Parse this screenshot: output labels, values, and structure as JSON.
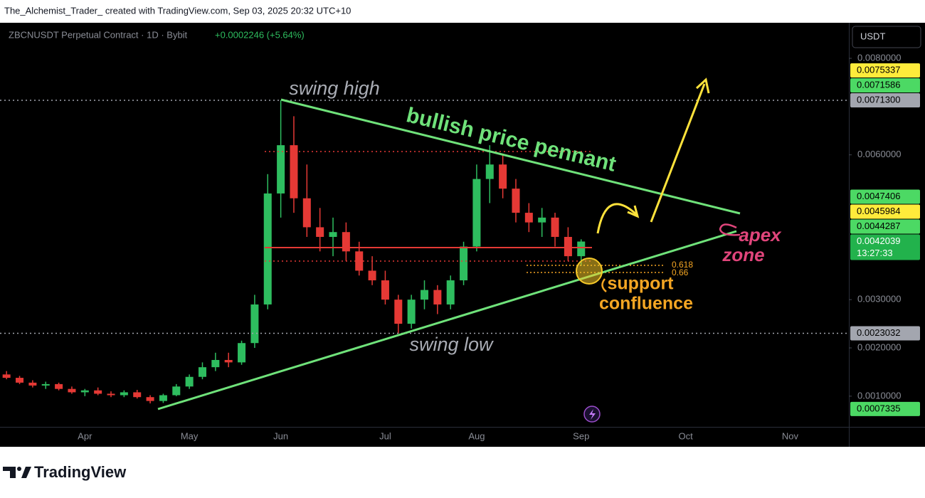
{
  "header": {
    "text": "The_Alchemist_Trader_ created with TradingView.com, Sep 03, 2025 20:32 UTC+10"
  },
  "footer": {
    "brand": "TradingView"
  },
  "chart_data": {
    "type": "candlestick",
    "title": "ZBCNUSDT Perpetual Contract · 1D · Bybit",
    "change": "+0.0002246 (+5.64%)",
    "currency": "USDT",
    "countdown": "13:27:33",
    "categories": [
      null,
      null,
      null,
      null,
      null,
      null,
      "Apr",
      null,
      null,
      null,
      null,
      null,
      null,
      null,
      "May",
      null,
      null,
      null,
      null,
      null,
      null,
      "Jun",
      null,
      null,
      null,
      null,
      null,
      null,
      null,
      "Jul",
      null,
      null,
      null,
      null,
      null,
      null,
      "Aug",
      null,
      null,
      null,
      null,
      null,
      null,
      null,
      "Sep",
      null,
      null,
      null,
      null,
      null,
      null,
      null,
      "Oct",
      null,
      null,
      null,
      null,
      null,
      null,
      null,
      "Nov",
      null,
      null,
      null,
      null
    ],
    "series": [
      {
        "open": [
          0.00145,
          0.00138,
          0.00128,
          0.00122,
          0.00125,
          0.00115,
          0.00108,
          0.00112,
          0.00105,
          0.00102,
          0.00108,
          0.00098,
          0.0009,
          0.00102,
          0.0012,
          0.0014,
          0.0016,
          0.00175,
          0.0017,
          0.0021,
          0.0029,
          0.0052,
          0.0062,
          0.0051,
          0.0045,
          0.0043,
          0.0044,
          0.004,
          0.0036,
          0.0034,
          0.003,
          0.0025,
          0.003,
          0.0032,
          0.0029,
          0.0034,
          0.0041,
          0.0055,
          0.0058,
          0.0053,
          0.0048,
          0.0046,
          0.0047,
          0.0043,
          0.0039,
          null,
          null,
          null,
          null,
          null,
          null,
          null,
          null,
          null,
          null,
          null,
          null,
          null,
          null,
          null,
          null,
          null,
          null,
          null,
          null
        ],
        "high": [
          0.00152,
          0.00142,
          0.00133,
          0.0013,
          0.00128,
          0.0012,
          0.00115,
          0.00118,
          0.0011,
          0.00112,
          0.00113,
          0.00102,
          0.00105,
          0.00125,
          0.00145,
          0.0017,
          0.0019,
          0.0019,
          0.00215,
          0.0031,
          0.0056,
          0.00713,
          0.0068,
          0.0058,
          0.0049,
          0.0047,
          0.0046,
          0.0042,
          0.0039,
          0.0036,
          0.0031,
          0.0031,
          0.0034,
          0.0033,
          0.0035,
          0.0042,
          0.0058,
          0.0062,
          0.006,
          0.0055,
          0.005,
          0.0049,
          0.0048,
          0.0045,
          0.00425,
          null,
          null,
          null,
          null,
          null,
          null,
          null,
          null,
          null,
          null,
          null,
          null,
          null,
          null,
          null,
          null,
          null,
          null,
          null,
          null
        ],
        "low": [
          0.00135,
          0.00125,
          0.00118,
          0.00115,
          0.00112,
          0.00105,
          0.001,
          0.00102,
          0.00098,
          0.00098,
          0.00095,
          0.00085,
          0.00086,
          0.001,
          0.00115,
          0.00135,
          0.00152,
          0.0016,
          0.00165,
          0.002,
          0.0028,
          0.0047,
          0.0048,
          0.0043,
          0.004,
          0.0039,
          0.0038,
          0.0035,
          0.0033,
          0.0029,
          0.0023,
          0.0024,
          0.0028,
          0.0027,
          0.0028,
          0.0033,
          0.004,
          0.005,
          0.0051,
          0.0046,
          0.0044,
          0.0043,
          0.0041,
          0.0038,
          0.0037,
          null,
          null,
          null,
          null,
          null,
          null,
          null,
          null,
          null,
          null,
          null,
          null,
          null,
          null,
          null,
          null,
          null,
          null,
          null,
          null
        ],
        "close": [
          0.00138,
          0.00128,
          0.00122,
          0.00125,
          0.00115,
          0.00108,
          0.00112,
          0.00105,
          0.00102,
          0.00108,
          0.00098,
          0.0009,
          0.00102,
          0.0012,
          0.0014,
          0.0016,
          0.00175,
          0.0017,
          0.0021,
          0.0029,
          0.0052,
          0.0062,
          0.0051,
          0.0045,
          0.0043,
          0.0044,
          0.004,
          0.0036,
          0.0034,
          0.003,
          0.0025,
          0.003,
          0.0032,
          0.0029,
          0.0034,
          0.0041,
          0.0055,
          0.0058,
          0.0053,
          0.0048,
          0.0046,
          0.0047,
          0.0043,
          0.0039,
          0.0042039,
          null,
          null,
          null,
          null,
          null,
          null,
          null,
          null,
          null,
          null,
          null,
          null,
          null,
          null,
          null,
          null,
          null,
          null,
          null,
          null
        ],
        "up_color": "#2ebd5f",
        "down_color": "#e53935"
      }
    ],
    "ylim": [
      0.000364,
      0.008737
    ],
    "yticks": [
      {
        "value": 0.008,
        "label": "0.0080000"
      },
      {
        "value": 0.006,
        "label": "0.0060000"
      },
      {
        "value": 0.003,
        "label": "0.0030000"
      },
      {
        "value": 0.002,
        "label": "0.0020000"
      },
      {
        "value": 0.001,
        "label": "0.0010000"
      }
    ],
    "grid": false,
    "price_labels": [
      {
        "price": 0.0075337,
        "color": "#ffeb3b",
        "text_color": "#000000"
      },
      {
        "price": 0.0071586,
        "color": "#4cd964",
        "text_color": "#000000"
      },
      {
        "price": {
          "value": 0.00713,
          "label": "0.0071300"
        },
        "color": "#a3a6af",
        "text_color": "#000000",
        "line": true
      },
      {
        "price": 0.0047406,
        "color": "#4cd964",
        "text_color": "#000000"
      },
      {
        "price": 0.0045984,
        "color": "#ffeb3b",
        "text_color": "#000000"
      },
      {
        "price": 0.0044287,
        "color": "#4cd964",
        "text_color": "#000000"
      },
      {
        "price": 0.0042039,
        "color": "#22b24c",
        "text_color": "#ffffff",
        "current": true
      },
      {
        "price": 0.0023032,
        "color": "#a3a6af",
        "text_color": "#000000",
        "line": true
      },
      {
        "price": 0.0007335,
        "color": "#4cd964",
        "text_color": "#000000"
      }
    ],
    "fib_levels": [
      0.618,
      0.66
    ],
    "annotations": {
      "swing_high": "swing high",
      "pennant": "bullish price pennant",
      "apex": "apex",
      "zone": "zone",
      "support": "support",
      "confluence": "confluence",
      "swing_low": "swing low"
    }
  }
}
